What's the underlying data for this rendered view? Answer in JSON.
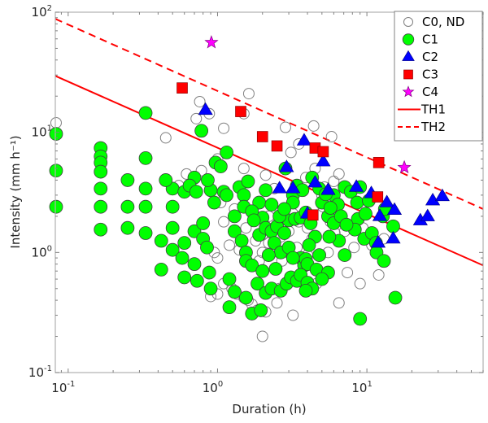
{
  "chart_data": {
    "type": "scatter",
    "title": "",
    "xlabel": "Duration (h)",
    "ylabel": "Intensity (mm h⁻¹)",
    "xscale": "log",
    "yscale": "log",
    "xlim": [
      0.082,
      60
    ],
    "ylim": [
      0.1,
      100
    ],
    "grid": false,
    "legend_position": "top-right",
    "x_ticks": [
      {
        "value": 0.1,
        "base": "10",
        "exp": "-1"
      },
      {
        "value": 1,
        "base": "10",
        "exp": "0"
      },
      {
        "value": 10,
        "base": "10",
        "exp": "1"
      }
    ],
    "y_ticks": [
      {
        "value": 0.1,
        "base": "10",
        "exp": "-1"
      },
      {
        "value": 1,
        "base": "10",
        "exp": "0"
      },
      {
        "value": 10,
        "base": "10",
        "exp": "1"
      },
      {
        "value": 100,
        "base": "10",
        "exp": "2"
      }
    ],
    "series": [
      {
        "name": "C0, ND",
        "marker": "circle-open",
        "color": "#ffffff",
        "edge": "#808080",
        "points": [
          [
            0.083,
            12
          ],
          [
            0.45,
            9.0
          ],
          [
            0.72,
            13
          ],
          [
            0.76,
            18
          ],
          [
            0.88,
            14.3
          ],
          [
            1.1,
            10.8
          ],
          [
            1.5,
            14.3
          ],
          [
            1.62,
            21
          ],
          [
            2.85,
            11
          ],
          [
            4.4,
            11.3
          ],
          [
            3.5,
            8.0
          ],
          [
            3.1,
            6.8
          ],
          [
            5.8,
            9.2
          ],
          [
            4.5,
            5.0
          ],
          [
            6.5,
            4.5
          ],
          [
            1.0,
            6.0
          ],
          [
            0.78,
            4.8
          ],
          [
            1.5,
            5.0
          ],
          [
            0.55,
            3.6
          ],
          [
            0.62,
            4.5
          ],
          [
            2.1,
            4.4
          ],
          [
            2.4,
            3.4
          ],
          [
            3.9,
            4.2
          ],
          [
            6.0,
            3.9
          ],
          [
            3.3,
            3.2
          ],
          [
            5.0,
            3.0
          ],
          [
            5.2,
            3.5
          ],
          [
            2.2,
            2.0
          ],
          [
            1.55,
            1.6
          ],
          [
            2.0,
            1.4
          ],
          [
            3.0,
            1.5
          ],
          [
            3.4,
            1.1
          ],
          [
            2.5,
            1.7
          ],
          [
            1.1,
            1.8
          ],
          [
            1.05,
            2.6
          ],
          [
            1.3,
            2.3
          ],
          [
            1.2,
            1.15
          ],
          [
            1.4,
            1.05
          ],
          [
            1.55,
            0.95
          ],
          [
            2.0,
            1.0
          ],
          [
            0.95,
            1.0
          ],
          [
            1.0,
            0.9
          ],
          [
            1.9,
            0.85
          ],
          [
            2.2,
            1.2
          ],
          [
            2.65,
            1.35
          ],
          [
            3.2,
            2.1
          ],
          [
            3.5,
            1.8
          ],
          [
            4.0,
            1.6
          ],
          [
            4.3,
            1.3
          ],
          [
            5.1,
            2.4
          ],
          [
            5.7,
            1.8
          ],
          [
            6.1,
            1.45
          ],
          [
            7.1,
            1.5
          ],
          [
            5.5,
            1.0
          ],
          [
            7.4,
            0.68
          ],
          [
            8.2,
            1.1
          ],
          [
            9.4,
            1.6
          ],
          [
            1.1,
            0.55
          ],
          [
            1.25,
            0.5
          ],
          [
            1.35,
            0.45
          ],
          [
            1.5,
            0.42
          ],
          [
            1.6,
            0.4
          ],
          [
            1.7,
            0.37
          ],
          [
            1.85,
            0.33
          ],
          [
            2.1,
            0.32
          ],
          [
            2.5,
            0.38
          ],
          [
            3.2,
            0.3
          ],
          [
            2.7,
            0.85
          ],
          [
            4.0,
            0.95
          ],
          [
            1.0,
            0.45
          ],
          [
            2.0,
            0.2
          ],
          [
            9.0,
            0.55
          ],
          [
            12.0,
            0.65
          ],
          [
            4.6,
            0.55
          ],
          [
            13.0,
            1.3
          ],
          [
            10.8,
            1.15
          ],
          [
            0.9,
            0.43
          ],
          [
            1.8,
            1.25
          ],
          [
            2.6,
            0.5
          ],
          [
            6.5,
            0.38
          ]
        ]
      },
      {
        "name": "C1",
        "marker": "circle",
        "color": "#00ff00",
        "edge": "#404040",
        "points": [
          [
            0.083,
            9.7
          ],
          [
            0.083,
            4.8
          ],
          [
            0.083,
            2.4
          ],
          [
            0.33,
            14.5
          ],
          [
            0.78,
            10.3
          ],
          [
            1.15,
            6.8
          ],
          [
            2.85,
            5.0
          ],
          [
            3.4,
            3.6
          ],
          [
            4.3,
            4.2
          ],
          [
            0.165,
            7.4
          ],
          [
            0.165,
            6.3
          ],
          [
            0.165,
            5.6
          ],
          [
            0.165,
            4.7
          ],
          [
            0.165,
            3.4
          ],
          [
            0.165,
            2.4
          ],
          [
            0.165,
            1.55
          ],
          [
            0.33,
            6.1
          ],
          [
            0.25,
            4.0
          ],
          [
            0.25,
            2.4
          ],
          [
            0.25,
            1.6
          ],
          [
            0.33,
            2.4
          ],
          [
            0.33,
            1.45
          ],
          [
            0.33,
            3.4
          ],
          [
            0.5,
            3.4
          ],
          [
            0.5,
            2.4
          ],
          [
            0.5,
            1.6
          ],
          [
            0.5,
            1.05
          ],
          [
            0.45,
            4.0
          ],
          [
            0.42,
            1.25
          ],
          [
            0.42,
            0.72
          ],
          [
            0.6,
            1.2
          ],
          [
            0.58,
            0.9
          ],
          [
            0.6,
            3.2
          ],
          [
            0.7,
            4.2
          ],
          [
            0.65,
            3.6
          ],
          [
            0.72,
            3.2
          ],
          [
            0.9,
            3.3
          ],
          [
            0.86,
            4.0
          ],
          [
            0.95,
            2.6
          ],
          [
            0.97,
            5.6
          ],
          [
            1.05,
            5.2
          ],
          [
            0.7,
            1.5
          ],
          [
            0.7,
            0.8
          ],
          [
            0.8,
            1.75
          ],
          [
            0.8,
            1.3
          ],
          [
            0.85,
            1.1
          ],
          [
            0.88,
            0.68
          ],
          [
            0.9,
            0.5
          ],
          [
            0.73,
            0.58
          ],
          [
            0.6,
            0.62
          ],
          [
            1.1,
            3.2
          ],
          [
            1.15,
            3.0
          ],
          [
            1.4,
            3.5
          ],
          [
            1.6,
            3.9
          ],
          [
            1.5,
            3.0
          ],
          [
            1.5,
            2.4
          ],
          [
            1.3,
            2.0
          ],
          [
            1.3,
            1.5
          ],
          [
            1.45,
            1.25
          ],
          [
            1.55,
            1.0
          ],
          [
            1.55,
            0.85
          ],
          [
            1.7,
            0.78
          ],
          [
            1.2,
            0.6
          ],
          [
            1.3,
            0.47
          ],
          [
            1.55,
            0.42
          ],
          [
            1.7,
            0.31
          ],
          [
            1.95,
            0.33
          ],
          [
            1.2,
            0.35
          ],
          [
            1.9,
            2.6
          ],
          [
            2.1,
            3.3
          ],
          [
            2.3,
            2.5
          ],
          [
            2.0,
            1.95
          ],
          [
            1.9,
            1.4
          ],
          [
            2.1,
            1.6
          ],
          [
            2.3,
            1.5
          ],
          [
            2.5,
            1.65
          ],
          [
            2.4,
            1.2
          ],
          [
            2.65,
            1.0
          ],
          [
            2.2,
            0.95
          ],
          [
            2.0,
            0.7
          ],
          [
            1.85,
            0.55
          ],
          [
            2.1,
            0.46
          ],
          [
            2.3,
            0.5
          ],
          [
            2.65,
            0.48
          ],
          [
            2.9,
            0.55
          ],
          [
            3.1,
            0.62
          ],
          [
            3.4,
            0.58
          ],
          [
            3.6,
            0.9
          ],
          [
            2.8,
            1.45
          ],
          [
            3.0,
            1.85
          ],
          [
            3.3,
            1.9
          ],
          [
            3.6,
            1.95
          ],
          [
            3.0,
            1.1
          ],
          [
            3.2,
            0.9
          ],
          [
            3.8,
            0.78
          ],
          [
            3.9,
            0.88
          ],
          [
            4.0,
            0.8
          ],
          [
            3.6,
            0.65
          ],
          [
            3.9,
            2.15
          ],
          [
            4.2,
            1.75
          ],
          [
            4.5,
            1.35
          ],
          [
            4.1,
            1.15
          ],
          [
            4.8,
            0.95
          ],
          [
            5.0,
            2.6
          ],
          [
            5.5,
            2.0
          ],
          [
            6.0,
            3.0
          ],
          [
            6.4,
            2.5
          ],
          [
            6.0,
            1.75
          ],
          [
            6.5,
            1.25
          ],
          [
            5.6,
            1.35
          ],
          [
            4.6,
            0.72
          ],
          [
            4.0,
            0.56
          ],
          [
            4.3,
            0.5
          ],
          [
            3.9,
            0.48
          ],
          [
            5.5,
            0.68
          ],
          [
            5.0,
            0.6
          ],
          [
            7.1,
            0.95
          ],
          [
            9.0,
            0.28
          ],
          [
            7.1,
            3.5
          ],
          [
            7.8,
            3.2
          ],
          [
            8.6,
            2.6
          ],
          [
            9.0,
            3.5
          ],
          [
            8.7,
            1.9
          ],
          [
            10.3,
            2.7
          ],
          [
            9.8,
            2.1
          ],
          [
            8.3,
            1.55
          ],
          [
            9.6,
            1.3
          ],
          [
            10.8,
            1.45
          ],
          [
            11.5,
            1.2
          ],
          [
            12.8,
            2.0
          ],
          [
            13.2,
            2.3
          ],
          [
            15.0,
            1.65
          ],
          [
            11.6,
            1.0
          ],
          [
            13.0,
            0.85
          ],
          [
            15.5,
            0.42
          ],
          [
            4.8,
            3.4
          ],
          [
            5.3,
            3.05
          ],
          [
            5.7,
            2.35
          ],
          [
            6.7,
            2.0
          ],
          [
            7.3,
            1.7
          ],
          [
            3.2,
            3.0
          ],
          [
            3.7,
            3.3
          ],
          [
            3.2,
            2.6
          ],
          [
            2.6,
            2.0
          ],
          [
            2.8,
            2.3
          ],
          [
            1.7,
            2.2
          ],
          [
            1.75,
            1.85
          ],
          [
            2.45,
            0.73
          ]
        ]
      },
      {
        "name": "C2",
        "marker": "triangle",
        "color": "#0000ff",
        "edge": "#000080",
        "points": [
          [
            0.83,
            15.3
          ],
          [
            3.8,
            8.5
          ],
          [
            5.1,
            5.7
          ],
          [
            2.9,
            5.1
          ],
          [
            2.6,
            3.4
          ],
          [
            3.2,
            3.4
          ],
          [
            4.5,
            3.8
          ],
          [
            5.5,
            3.3
          ],
          [
            8.5,
            3.5
          ],
          [
            10.7,
            3.1
          ],
          [
            13.6,
            2.6
          ],
          [
            15.3,
            2.25
          ],
          [
            12.2,
            2.0
          ],
          [
            27.6,
            2.7
          ],
          [
            32,
            2.93
          ],
          [
            22.8,
            1.84
          ],
          [
            25.5,
            1.99
          ],
          [
            11.9,
            1.2
          ],
          [
            15,
            1.3
          ],
          [
            4.0,
            2.1
          ]
        ]
      },
      {
        "name": "C3",
        "marker": "square",
        "color": "#ff0000",
        "edge": "#800000",
        "points": [
          [
            0.58,
            23.4
          ],
          [
            1.43,
            14.9
          ],
          [
            2.0,
            9.2
          ],
          [
            2.5,
            7.7
          ],
          [
            4.5,
            7.4
          ],
          [
            5.1,
            6.9
          ],
          [
            12.0,
            5.6
          ],
          [
            11.8,
            2.9
          ],
          [
            4.35,
            2.05
          ]
        ]
      },
      {
        "name": "C4",
        "marker": "star",
        "color": "#ff00ff",
        "edge": "#800080",
        "points": [
          [
            0.91,
            56
          ],
          [
            17.8,
            5.1
          ]
        ]
      }
    ],
    "lines": [
      {
        "name": "TH1",
        "style": "solid",
        "color": "#ff0000",
        "points": [
          [
            0.082,
            29.5
          ],
          [
            60,
            0.78
          ]
        ]
      },
      {
        "name": "TH2",
        "style": "dashed",
        "color": "#ff0000",
        "points": [
          [
            0.082,
            88
          ],
          [
            60,
            2.3
          ]
        ]
      }
    ],
    "legend": [
      "C0, ND",
      "C1",
      "C2",
      "C3",
      "C4",
      "TH1",
      "TH2"
    ]
  }
}
